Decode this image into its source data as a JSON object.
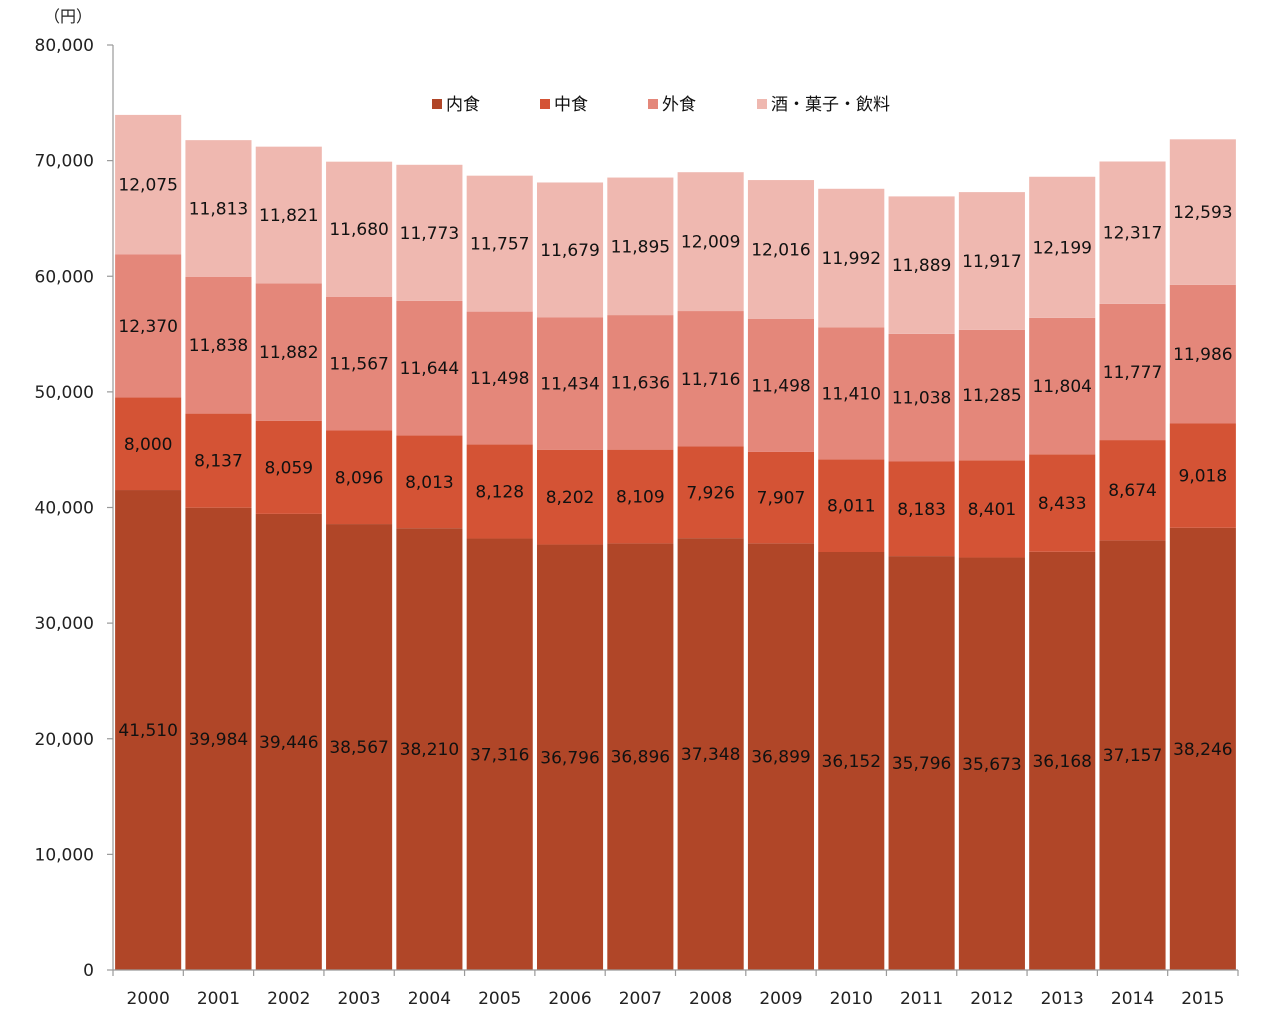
{
  "chart_data": {
    "type": "bar",
    "stacked": true,
    "unit_label": "（円）",
    "categories": [
      "2000",
      "2001",
      "2002",
      "2003",
      "2004",
      "2005",
      "2006",
      "2007",
      "2008",
      "2009",
      "2010",
      "2011",
      "2012",
      "2013",
      "2014",
      "2015"
    ],
    "series": [
      {
        "name": "内食",
        "color": "#b04628",
        "values": [
          41510,
          39984,
          39446,
          38567,
          38210,
          37316,
          36796,
          36896,
          37348,
          36899,
          36152,
          35796,
          35673,
          36168,
          37157,
          38246
        ]
      },
      {
        "name": "中食",
        "color": "#d45335",
        "values": [
          8000,
          8137,
          8059,
          8096,
          8013,
          8128,
          8202,
          8109,
          7926,
          7907,
          8011,
          8183,
          8401,
          8433,
          8674,
          9018
        ]
      },
      {
        "name": "外食",
        "color": "#e4877a",
        "values": [
          12370,
          11838,
          11882,
          11567,
          11644,
          11498,
          11434,
          11636,
          11716,
          11498,
          11410,
          11038,
          11285,
          11804,
          11777,
          11986
        ]
      },
      {
        "name": "酒・菓子・飲料",
        "color": "#efb8b0",
        "values": [
          12075,
          11813,
          11821,
          11680,
          11773,
          11757,
          11679,
          11895,
          12009,
          12016,
          11992,
          11889,
          11917,
          12199,
          12317,
          12593
        ]
      }
    ],
    "value_labels": [
      [
        "41,510",
        "39,984",
        "39,446",
        "38,567",
        "38,210",
        "37,316",
        "36,796",
        "36,896",
        "37,348",
        "36,899",
        "36,152",
        "35,796",
        "35,673",
        "36,168",
        "37,157",
        "38,246"
      ],
      [
        "8,000",
        "8,137",
        "8,059",
        "8,096",
        "8,013",
        "8,128",
        "8,202",
        "8,109",
        "7,926",
        "7,907",
        "8,011",
        "8,183",
        "8,401",
        "8,433",
        "8,674",
        "9,018"
      ],
      [
        "12,370",
        "11,838",
        "11,882",
        "11,567",
        "11,644",
        "11,498",
        "11,434",
        "11,636",
        "11,716",
        "11,498",
        "11,410",
        "11,038",
        "11,285",
        "11,804",
        "11,777",
        "11,986"
      ],
      [
        "12,075",
        "11,813",
        "11,821",
        "11,680",
        "11,773",
        "11,757",
        "11,679",
        "11,895",
        "12,009",
        "12,016",
        "11,992",
        "11,889",
        "11,917",
        "12,199",
        "12,317",
        "12,593"
      ]
    ],
    "ylim": [
      0,
      80000
    ],
    "yticks": [
      0,
      10000,
      20000,
      30000,
      40000,
      50000,
      60000,
      70000,
      80000
    ],
    "ytick_labels": [
      "0",
      "10,000",
      "20,000",
      "30,000",
      "40,000",
      "50,000",
      "60,000",
      "70,000",
      "80,000"
    ],
    "grid": false,
    "legend_position": "top-center"
  }
}
